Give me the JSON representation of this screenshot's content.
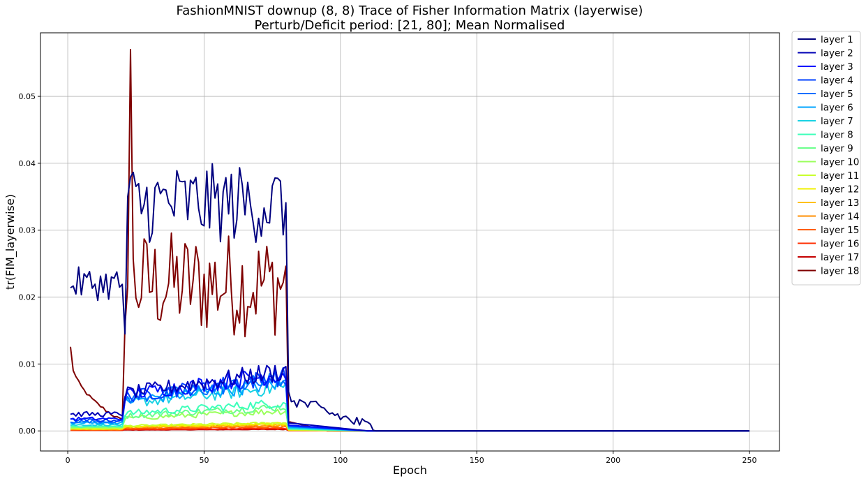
{
  "chart_data": {
    "type": "line",
    "title": "FashionMNIST downup (8, 8) Trace of Fisher Information Matrix (layerwise)",
    "subtitle": "Perturb/Deficit period: [21, 80]; Mean Normalised",
    "xlabel": "Epoch",
    "ylabel": "tr(FIM_layerwise)",
    "xlim": [
      -10,
      261
    ],
    "ylim": [
      -0.003,
      0.0595
    ],
    "xticks": [
      0,
      50,
      100,
      150,
      200,
      250
    ],
    "yticks": [
      0.0,
      0.01,
      0.02,
      0.03,
      0.04,
      0.05
    ],
    "xtick_labels": [
      "0",
      "50",
      "100",
      "150",
      "200",
      "250"
    ],
    "ytick_labels": [
      "0.00",
      "0.01",
      "0.02",
      "0.03",
      "0.04",
      "0.05"
    ],
    "grid": true,
    "legend_position": "outside-right-top",
    "x_range": [
      1,
      250
    ],
    "series": [
      {
        "name": "layer 1",
        "color": "#00007f"
      },
      {
        "name": "layer 2",
        "color": "#0000b6"
      },
      {
        "name": "layer 3",
        "color": "#0010ff"
      },
      {
        "name": "layer 4",
        "color": "#0040ff"
      },
      {
        "name": "layer 5",
        "color": "#0070ff"
      },
      {
        "name": "layer 6",
        "color": "#00a4ff"
      },
      {
        "name": "layer 7",
        "color": "#19d2e3"
      },
      {
        "name": "layer 8",
        "color": "#3dffba"
      },
      {
        "name": "layer 9",
        "color": "#6bff8c"
      },
      {
        "name": "layer 10",
        "color": "#9bff5c"
      },
      {
        "name": "layer 11",
        "color": "#c9ff2d"
      },
      {
        "name": "layer 12",
        "color": "#f0f000"
      },
      {
        "name": "layer 13",
        "color": "#ffc100"
      },
      {
        "name": "layer 14",
        "color": "#ff8e00"
      },
      {
        "name": "layer 15",
        "color": "#ff5e00"
      },
      {
        "name": "layer 16",
        "color": "#ff2d00"
      },
      {
        "name": "layer 17",
        "color": "#c40000"
      },
      {
        "name": "layer 18",
        "color": "#7f0000"
      }
    ],
    "series_approx_levels": {
      "layer 1": {
        "pre": 0.022,
        "during": 0.034,
        "post_decay_from": 0.005,
        "post_zero_after": 115
      },
      "layer 2": {
        "pre": 0.0025,
        "during": 0.0075
      },
      "layer 3": {
        "pre": 0.0018,
        "during": 0.0072
      },
      "layer 4": {
        "pre": 0.0016,
        "during": 0.0068
      },
      "layer 5": {
        "pre": 0.0014,
        "during": 0.0064
      },
      "layer 6": {
        "pre": 0.0012,
        "during": 0.006
      },
      "layer 7": {
        "pre": 0.0009,
        "during": 0.0055
      },
      "layer 8": {
        "pre": 0.0007,
        "during": 0.0035
      },
      "layer 9": {
        "pre": 0.0006,
        "during": 0.003
      },
      "layer 10": {
        "pre": 0.0005,
        "during": 0.0025
      },
      "layer 11": {
        "pre": 0.0004,
        "during": 0.001
      },
      "layer 12": {
        "pre": 0.0003,
        "during": 0.0009
      },
      "layer 13": {
        "pre": 0.0003,
        "during": 0.0008
      },
      "layer 14": {
        "pre": 0.0002,
        "during": 0.0007
      },
      "layer 15": {
        "pre": 0.0002,
        "during": 0.0005
      },
      "layer 16": {
        "pre": 0.0001,
        "during": 0.0003
      },
      "layer 17": {
        "pre": 0.0001,
        "during": 0.0002
      },
      "layer 18": {
        "pre_start": 0.0125,
        "pre_end": 0.0013,
        "during": 0.022,
        "peak": [
          23,
          0.057
        ]
      }
    }
  }
}
